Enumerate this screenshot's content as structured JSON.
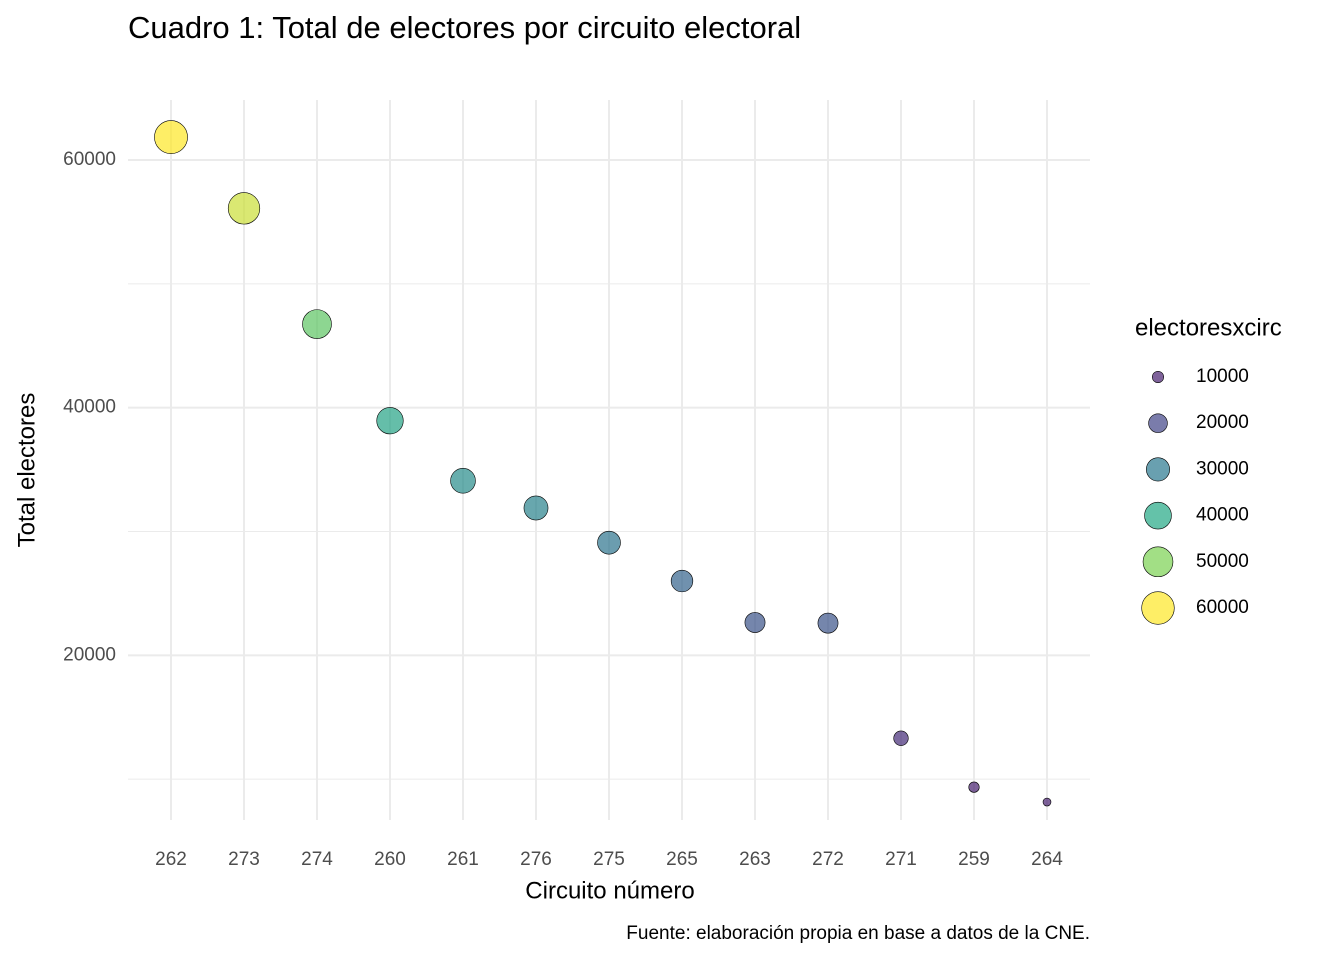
{
  "chart_data": {
    "type": "scatter",
    "title": "Cuadro 1: Total de electores por circuito electoral",
    "x_label": "Circuito número",
    "y_label": "Total electores",
    "caption": "Fuente: elaboración propia en base a datos de la CNE.",
    "categories": [
      "262",
      "273",
      "274",
      "260",
      "261",
      "276",
      "275",
      "265",
      "263",
      "272",
      "271",
      "259",
      "264"
    ],
    "values": [
      61850,
      56100,
      46750,
      38950,
      34100,
      31900,
      29100,
      26000,
      22650,
      22600,
      13300,
      9350,
      8150
    ],
    "ylim": [
      6700,
      64850
    ],
    "yticks": [
      20000,
      40000,
      60000
    ],
    "minor_yticks": [
      10000,
      30000,
      50000
    ],
    "grid": true,
    "legend": {
      "title": "electoresxcirc",
      "breaks": [
        10000,
        20000,
        30000,
        40000,
        50000,
        60000
      ],
      "colors": [
        "#471f6f",
        "#414487",
        "#2a788e",
        "#22a884",
        "#7ad151",
        "#fde725"
      ]
    }
  }
}
